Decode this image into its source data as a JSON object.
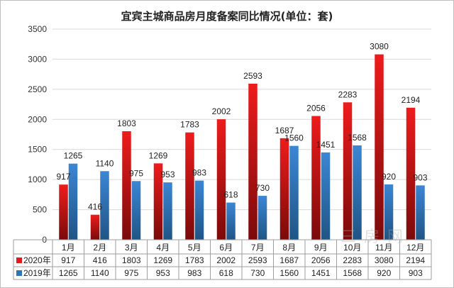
{
  "chart_data": {
    "type": "bar",
    "title": "宜宾主城商品房月度备案同比情况(单位：套)",
    "categories": [
      "1月",
      "2月",
      "3月",
      "4月",
      "5月",
      "6月",
      "7月",
      "8月",
      "9月",
      "10月",
      "11月",
      "12月"
    ],
    "series": [
      {
        "name": "2020年",
        "color": "#e31a1c",
        "values": [
          917,
          416,
          1803,
          1269,
          1783,
          2002,
          2593,
          1687,
          2056,
          2283,
          3080,
          2194
        ]
      },
      {
        "name": "2019年",
        "color": "#2e75b6",
        "values": [
          1265,
          1140,
          975,
          953,
          983,
          618,
          730,
          1560,
          1451,
          1568,
          920,
          903
        ]
      }
    ],
    "y_ticks": [
      0,
      500,
      1000,
      1500,
      2000,
      2500,
      3000,
      3500
    ],
    "ylim": [
      0,
      3500
    ],
    "grid": true,
    "legend": "data-table-below"
  }
}
